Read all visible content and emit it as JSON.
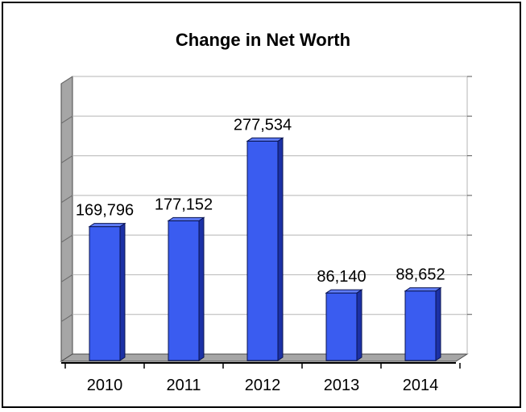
{
  "chart_data": {
    "type": "bar",
    "title": "Change in Net Worth",
    "categories": [
      "2010",
      "2011",
      "2012",
      "2013",
      "2014"
    ],
    "values": [
      169796,
      177152,
      277534,
      86140,
      88652
    ],
    "data_labels": [
      "169,796",
      "177,152",
      "277,534",
      "86,140",
      "88,652"
    ],
    "ylim": [
      0,
      350000
    ],
    "grid": true,
    "legend": "none",
    "style": "3d",
    "colors": {
      "bar_front": "#3a5cf0",
      "bar_top": "#5f7cf6",
      "bar_side": "#1c31a6",
      "bar_edge": "#0a1450",
      "wall": "#a6a6a6",
      "floor": "#a6a6a6",
      "gridline": "#b5b5b5",
      "axis": "#000000"
    }
  }
}
